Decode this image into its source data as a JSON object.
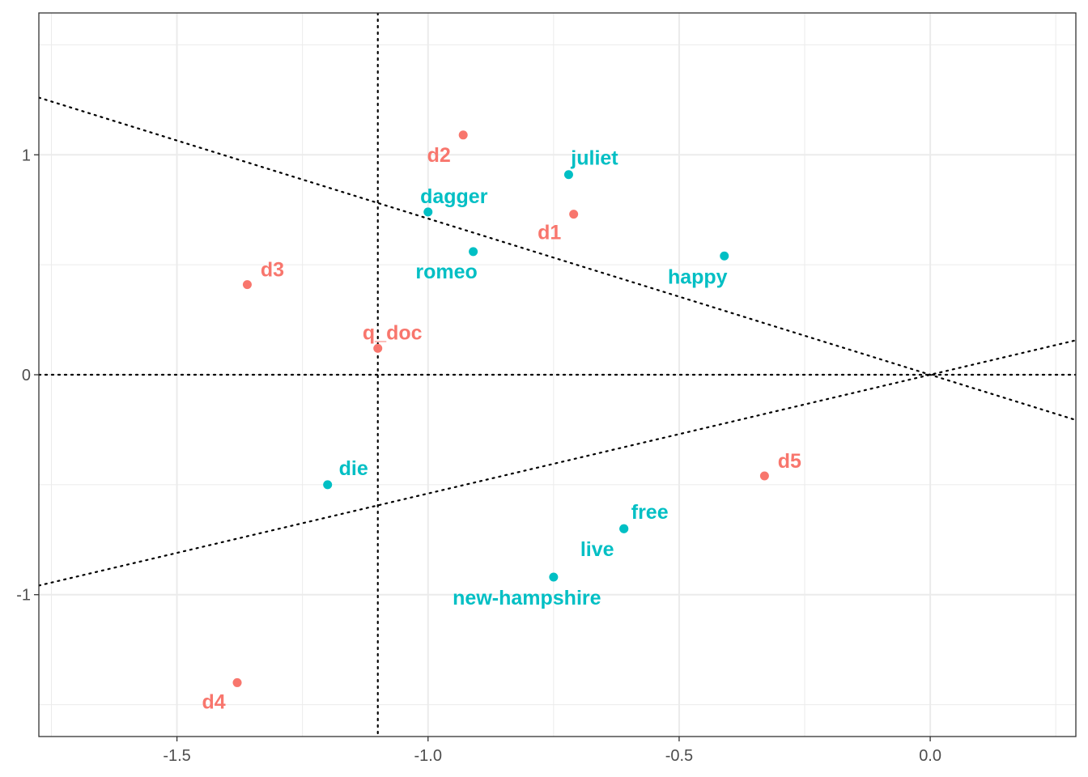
{
  "chart_data": {
    "type": "scatter",
    "title": "",
    "xlabel": "",
    "ylabel": "",
    "xlim": [
      -1.775,
      0.29
    ],
    "ylim": [
      -1.645,
      1.645
    ],
    "x_ticks": [
      {
        "value": -1.5,
        "label": "-1.5"
      },
      {
        "value": -1.0,
        "label": "-1.0"
      },
      {
        "value": -0.5,
        "label": "-0.5"
      },
      {
        "value": 0.0,
        "label": "0.0"
      }
    ],
    "y_ticks": [
      {
        "value": -1,
        "label": "-1"
      },
      {
        "value": 0,
        "label": "0"
      },
      {
        "value": 1,
        "label": "1"
      }
    ],
    "grid": true,
    "legend": "none",
    "colors": {
      "document": "#F8766D",
      "term": "#00BFC4"
    },
    "points": [
      {
        "label": "d1",
        "x": -0.71,
        "y": 0.73,
        "group": "document"
      },
      {
        "label": "d2",
        "x": -0.93,
        "y": 1.09,
        "group": "document"
      },
      {
        "label": "d3",
        "x": -1.36,
        "y": 0.41,
        "group": "document"
      },
      {
        "label": "d4",
        "x": -1.38,
        "y": -1.4,
        "group": "document"
      },
      {
        "label": "d5",
        "x": -0.33,
        "y": -0.46,
        "group": "document"
      },
      {
        "label": "q_doc",
        "x": -1.1,
        "y": 0.12,
        "group": "document"
      },
      {
        "label": "juliet",
        "x": -0.72,
        "y": 0.91,
        "group": "term"
      },
      {
        "label": "dagger",
        "x": -1.0,
        "y": 0.74,
        "group": "term"
      },
      {
        "label": "romeo",
        "x": -0.91,
        "y": 0.56,
        "group": "term"
      },
      {
        "label": "happy",
        "x": -0.41,
        "y": 0.54,
        "group": "term"
      },
      {
        "label": "die",
        "x": -1.2,
        "y": -0.5,
        "group": "term"
      },
      {
        "label": "free",
        "x": -0.61,
        "y": -0.7,
        "group": "term"
      },
      {
        "label": "live",
        "x": -0.61,
        "y": -0.7,
        "group": "term"
      },
      {
        "label": "new-hampshire",
        "x": -0.75,
        "y": -0.92,
        "group": "term"
      }
    ],
    "reference_lines": [
      {
        "kind": "hline",
        "value": 0
      },
      {
        "kind": "vline",
        "value": -1.1
      },
      {
        "kind": "abline",
        "slope": -0.71,
        "intercept": 0
      },
      {
        "kind": "abline",
        "slope": 0.54,
        "intercept": 0
      }
    ]
  }
}
